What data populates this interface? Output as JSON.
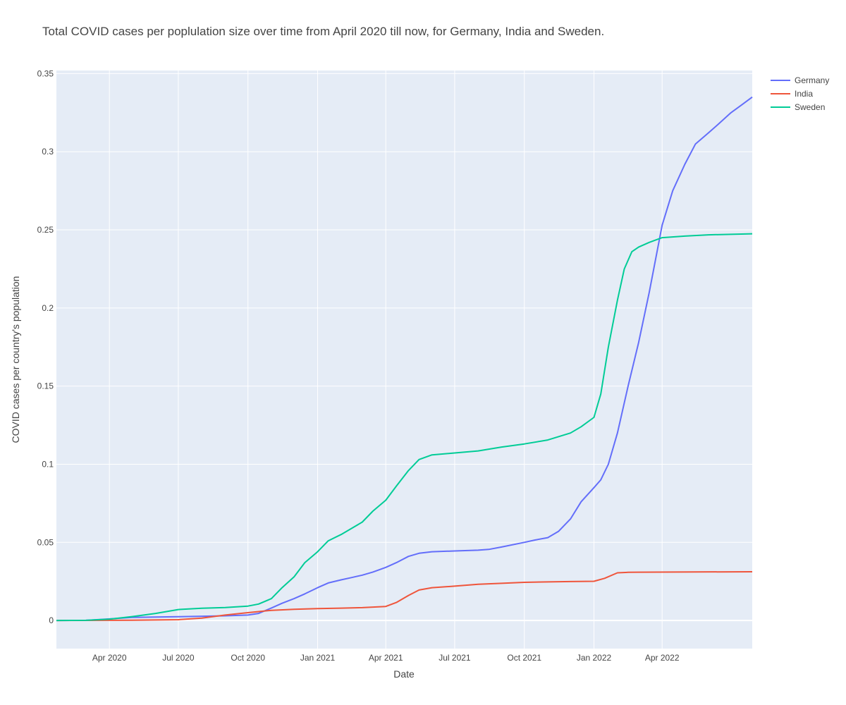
{
  "chart_data": {
    "type": "line",
    "title": "Total COVID cases per poplulation size over time from April 2020 till now, for Germany, India and Sweden.",
    "xlabel": "Date",
    "ylabel": "COVID cases per country's population",
    "xlim": [
      "2020-01-22",
      "2022-07-29"
    ],
    "ylim": [
      -0.018,
      0.352
    ],
    "x_ticks": [
      {
        "date": "2020-04-01",
        "label": "Apr 2020"
      },
      {
        "date": "2020-07-01",
        "label": "Jul 2020"
      },
      {
        "date": "2020-10-01",
        "label": "Oct 2020"
      },
      {
        "date": "2021-01-01",
        "label": "Jan 2021"
      },
      {
        "date": "2021-04-01",
        "label": "Apr 2021"
      },
      {
        "date": "2021-07-01",
        "label": "Jul 2021"
      },
      {
        "date": "2021-10-01",
        "label": "Oct 2021"
      },
      {
        "date": "2022-01-01",
        "label": "Jan 2022"
      },
      {
        "date": "2022-04-01",
        "label": "Apr 2022"
      }
    ],
    "y_ticks": [
      {
        "value": 0,
        "label": "0"
      },
      {
        "value": 0.05,
        "label": "0.05"
      },
      {
        "value": 0.1,
        "label": "0.1"
      },
      {
        "value": 0.15,
        "label": "0.15"
      },
      {
        "value": 0.2,
        "label": "0.2"
      },
      {
        "value": 0.25,
        "label": "0.25"
      },
      {
        "value": 0.3,
        "label": "0.3"
      },
      {
        "value": 0.35,
        "label": "0.35"
      }
    ],
    "grid": true,
    "legend_position": "top-right",
    "series": [
      {
        "name": "Germany",
        "color": "#636efa",
        "points": [
          [
            "2020-01-22",
            0
          ],
          [
            "2020-03-01",
            0.0001
          ],
          [
            "2020-04-01",
            0.001
          ],
          [
            "2020-05-01",
            0.002
          ],
          [
            "2020-07-01",
            0.0024
          ],
          [
            "2020-09-01",
            0.003
          ],
          [
            "2020-10-01",
            0.0035
          ],
          [
            "2020-10-15",
            0.0045
          ],
          [
            "2020-11-01",
            0.008
          ],
          [
            "2020-11-15",
            0.011
          ],
          [
            "2020-12-01",
            0.014
          ],
          [
            "2020-12-15",
            0.017
          ],
          [
            "2021-01-01",
            0.021
          ],
          [
            "2021-01-15",
            0.024
          ],
          [
            "2021-02-01",
            0.026
          ],
          [
            "2021-02-15",
            0.0275
          ],
          [
            "2021-03-01",
            0.029
          ],
          [
            "2021-03-15",
            0.031
          ],
          [
            "2021-04-01",
            0.034
          ],
          [
            "2021-04-15",
            0.037
          ],
          [
            "2021-05-01",
            0.041
          ],
          [
            "2021-05-15",
            0.043
          ],
          [
            "2021-06-01",
            0.044
          ],
          [
            "2021-07-01",
            0.0445
          ],
          [
            "2021-08-01",
            0.045
          ],
          [
            "2021-08-15",
            0.0455
          ],
          [
            "2021-09-01",
            0.047
          ],
          [
            "2021-10-01",
            0.05
          ],
          [
            "2021-10-15",
            0.0515
          ],
          [
            "2021-11-01",
            0.053
          ],
          [
            "2021-11-15",
            0.057
          ],
          [
            "2021-12-01",
            0.065
          ],
          [
            "2021-12-15",
            0.076
          ],
          [
            "2022-01-01",
            0.085
          ],
          [
            "2022-01-10",
            0.09
          ],
          [
            "2022-01-20",
            0.1
          ],
          [
            "2022-02-01",
            0.12
          ],
          [
            "2022-02-15",
            0.15
          ],
          [
            "2022-03-01",
            0.178
          ],
          [
            "2022-03-15",
            0.21
          ],
          [
            "2022-04-01",
            0.253
          ],
          [
            "2022-04-15",
            0.275
          ],
          [
            "2022-05-01",
            0.292
          ],
          [
            "2022-05-15",
            0.305
          ],
          [
            "2022-06-01",
            0.312
          ],
          [
            "2022-06-15",
            0.318
          ],
          [
            "2022-07-01",
            0.325
          ],
          [
            "2022-07-15",
            0.33
          ],
          [
            "2022-07-29",
            0.335
          ]
        ]
      },
      {
        "name": "India",
        "color": "#ef553b",
        "points": [
          [
            "2020-01-22",
            0
          ],
          [
            "2020-04-01",
            0.0001
          ],
          [
            "2020-05-01",
            0.0002
          ],
          [
            "2020-07-01",
            0.0005
          ],
          [
            "2020-08-01",
            0.0015
          ],
          [
            "2020-09-01",
            0.0035
          ],
          [
            "2020-10-01",
            0.005
          ],
          [
            "2020-11-01",
            0.0065
          ],
          [
            "2020-12-01",
            0.0072
          ],
          [
            "2021-01-01",
            0.0076
          ],
          [
            "2021-02-01",
            0.0079
          ],
          [
            "2021-03-01",
            0.0082
          ],
          [
            "2021-04-01",
            0.009
          ],
          [
            "2021-04-15",
            0.0115
          ],
          [
            "2021-05-01",
            0.016
          ],
          [
            "2021-05-15",
            0.0195
          ],
          [
            "2021-06-01",
            0.021
          ],
          [
            "2021-07-01",
            0.022
          ],
          [
            "2021-08-01",
            0.0232
          ],
          [
            "2021-09-01",
            0.0238
          ],
          [
            "2021-10-01",
            0.0244
          ],
          [
            "2021-11-01",
            0.0247
          ],
          [
            "2021-12-01",
            0.0249
          ],
          [
            "2022-01-01",
            0.0251
          ],
          [
            "2022-01-15",
            0.027
          ],
          [
            "2022-02-01",
            0.0305
          ],
          [
            "2022-02-15",
            0.0308
          ],
          [
            "2022-03-01",
            0.0309
          ],
          [
            "2022-07-29",
            0.0312
          ]
        ]
      },
      {
        "name": "Sweden",
        "color": "#00cc96",
        "points": [
          [
            "2020-01-22",
            0
          ],
          [
            "2020-03-01",
            0.0001
          ],
          [
            "2020-04-01",
            0.0008
          ],
          [
            "2020-05-01",
            0.0025
          ],
          [
            "2020-06-01",
            0.0045
          ],
          [
            "2020-07-01",
            0.007
          ],
          [
            "2020-08-01",
            0.0078
          ],
          [
            "2020-09-01",
            0.0083
          ],
          [
            "2020-10-01",
            0.0092
          ],
          [
            "2020-10-15",
            0.0105
          ],
          [
            "2020-11-01",
            0.014
          ],
          [
            "2020-11-15",
            0.021
          ],
          [
            "2020-12-01",
            0.028
          ],
          [
            "2020-12-15",
            0.037
          ],
          [
            "2021-01-01",
            0.044
          ],
          [
            "2021-01-15",
            0.051
          ],
          [
            "2021-02-01",
            0.055
          ],
          [
            "2021-02-15",
            0.059
          ],
          [
            "2021-03-01",
            0.063
          ],
          [
            "2021-03-15",
            0.07
          ],
          [
            "2021-04-01",
            0.077
          ],
          [
            "2021-04-15",
            0.086
          ],
          [
            "2021-05-01",
            0.096
          ],
          [
            "2021-05-15",
            0.103
          ],
          [
            "2021-06-01",
            0.106
          ],
          [
            "2021-07-01",
            0.1072
          ],
          [
            "2021-08-01",
            0.1085
          ],
          [
            "2021-09-01",
            0.111
          ],
          [
            "2021-10-01",
            0.113
          ],
          [
            "2021-11-01",
            0.1155
          ],
          [
            "2021-12-01",
            0.12
          ],
          [
            "2021-12-15",
            0.124
          ],
          [
            "2022-01-01",
            0.13
          ],
          [
            "2022-01-10",
            0.145
          ],
          [
            "2022-01-20",
            0.175
          ],
          [
            "2022-02-01",
            0.205
          ],
          [
            "2022-02-10",
            0.225
          ],
          [
            "2022-02-20",
            0.236
          ],
          [
            "2022-03-01",
            0.239
          ],
          [
            "2022-03-15",
            0.242
          ],
          [
            "2022-04-01",
            0.245
          ],
          [
            "2022-05-01",
            0.246
          ],
          [
            "2022-06-01",
            0.2468
          ],
          [
            "2022-07-29",
            0.2475
          ]
        ]
      }
    ]
  }
}
